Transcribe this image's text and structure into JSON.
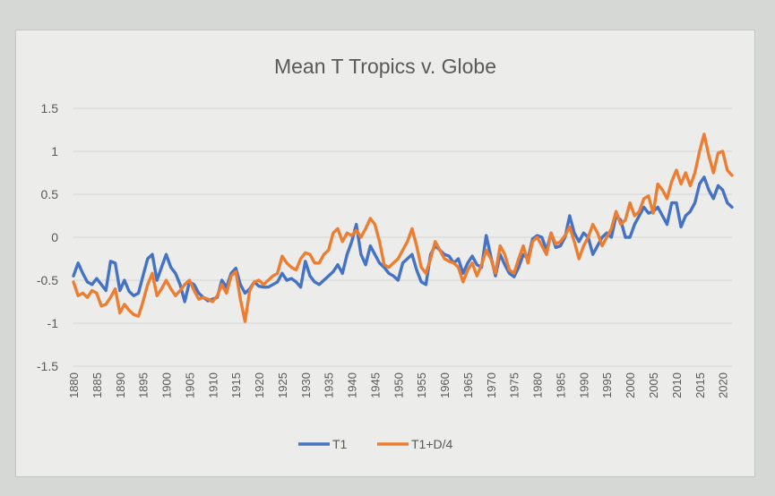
{
  "chart_data": {
    "type": "line",
    "title": "Mean T Tropics v. Globe",
    "xlabel": "",
    "ylabel": "",
    "ylim": [
      -1.5,
      1.5
    ],
    "yticks": [
      "1.5",
      "1",
      "0.5",
      "0",
      "-0.5",
      "-1",
      "-1.5"
    ],
    "ytick_values": [
      1.5,
      1,
      0.5,
      0,
      -0.5,
      -1,
      -1.5
    ],
    "xlim": [
      1880,
      2022
    ],
    "xticks": [
      "1880",
      "1885",
      "1890",
      "1895",
      "1900",
      "1905",
      "1910",
      "1915",
      "1920",
      "1925",
      "1930",
      "1935",
      "1940",
      "1945",
      "1950",
      "1955",
      "1960",
      "1965",
      "1970",
      "1975",
      "1980",
      "1985",
      "1990",
      "1995",
      "2000",
      "2005",
      "2010",
      "2015",
      "2020"
    ],
    "xtick_values": [
      1880,
      1885,
      1890,
      1895,
      1900,
      1905,
      1910,
      1915,
      1920,
      1925,
      1930,
      1935,
      1940,
      1945,
      1950,
      1955,
      1960,
      1965,
      1970,
      1975,
      1980,
      1985,
      1990,
      1995,
      2000,
      2005,
      2010,
      2015,
      2020
    ],
    "grid": true,
    "legend_position": "bottom",
    "series": [
      {
        "name": "T1",
        "color": "#4472c4",
        "x": [
          1880,
          1881,
          1882,
          1883,
          1884,
          1885,
          1886,
          1887,
          1888,
          1889,
          1890,
          1891,
          1892,
          1893,
          1894,
          1895,
          1896,
          1897,
          1898,
          1899,
          1900,
          1901,
          1902,
          1903,
          1904,
          1905,
          1906,
          1907,
          1908,
          1909,
          1910,
          1911,
          1912,
          1913,
          1914,
          1915,
          1916,
          1917,
          1918,
          1919,
          1920,
          1921,
          1922,
          1923,
          1924,
          1925,
          1926,
          1927,
          1928,
          1929,
          1930,
          1931,
          1932,
          1933,
          1934,
          1935,
          1936,
          1937,
          1938,
          1939,
          1940,
          1941,
          1942,
          1943,
          1944,
          1945,
          1946,
          1947,
          1948,
          1949,
          1950,
          1951,
          1952,
          1953,
          1954,
          1955,
          1956,
          1957,
          1958,
          1959,
          1960,
          1961,
          1962,
          1963,
          1964,
          1965,
          1966,
          1967,
          1968,
          1969,
          1970,
          1971,
          1972,
          1973,
          1974,
          1975,
          1976,
          1977,
          1978,
          1979,
          1980,
          1981,
          1982,
          1983,
          1984,
          1985,
          1986,
          1987,
          1988,
          1989,
          1990,
          1991,
          1992,
          1993,
          1994,
          1995,
          1996,
          1997,
          1998,
          1999,
          2000,
          2001,
          2002,
          2003,
          2004,
          2005,
          2006,
          2007,
          2008,
          2009,
          2010,
          2011,
          2012,
          2013,
          2014,
          2015,
          2016,
          2017,
          2018,
          2019,
          2020,
          2021,
          2022
        ],
        "y": [
          -0.45,
          -0.3,
          -0.42,
          -0.52,
          -0.55,
          -0.48,
          -0.55,
          -0.62,
          -0.28,
          -0.3,
          -0.62,
          -0.5,
          -0.63,
          -0.68,
          -0.65,
          -0.45,
          -0.25,
          -0.2,
          -0.5,
          -0.35,
          -0.2,
          -0.35,
          -0.42,
          -0.55,
          -0.75,
          -0.52,
          -0.55,
          -0.65,
          -0.7,
          -0.74,
          -0.72,
          -0.7,
          -0.5,
          -0.58,
          -0.42,
          -0.36,
          -0.55,
          -0.65,
          -0.6,
          -0.52,
          -0.57,
          -0.58,
          -0.58,
          -0.55,
          -0.52,
          -0.42,
          -0.5,
          -0.48,
          -0.52,
          -0.58,
          -0.28,
          -0.45,
          -0.52,
          -0.55,
          -0.5,
          -0.45,
          -0.4,
          -0.32,
          -0.42,
          -0.2,
          -0.05,
          0.15,
          -0.2,
          -0.32,
          -0.1,
          -0.2,
          -0.3,
          -0.35,
          -0.42,
          -0.45,
          -0.5,
          -0.3,
          -0.25,
          -0.2,
          -0.38,
          -0.52,
          -0.55,
          -0.2,
          -0.1,
          -0.15,
          -0.2,
          -0.22,
          -0.3,
          -0.25,
          -0.42,
          -0.3,
          -0.22,
          -0.32,
          -0.35,
          0.02,
          -0.22,
          -0.45,
          -0.2,
          -0.32,
          -0.42,
          -0.46,
          -0.35,
          -0.2,
          -0.25,
          -0.02,
          0.02,
          0.0,
          -0.15,
          0.05,
          -0.12,
          -0.1,
          0.0,
          0.25,
          0.05,
          -0.05,
          0.05,
          0.0,
          -0.2,
          -0.1,
          0.0,
          0.05,
          0.0,
          0.25,
          0.2,
          0.0,
          0.0,
          0.15,
          0.25,
          0.35,
          0.28,
          0.3,
          0.35,
          0.25,
          0.15,
          0.4,
          0.4,
          0.12,
          0.25,
          0.3,
          0.4,
          0.62,
          0.7,
          0.55,
          0.45,
          0.6,
          0.55,
          0.4,
          0.35
        ]
      },
      {
        "name": "T1+D/4",
        "color": "#ed7d31",
        "x": [
          1880,
          1881,
          1882,
          1883,
          1884,
          1885,
          1886,
          1887,
          1888,
          1889,
          1890,
          1891,
          1892,
          1893,
          1894,
          1895,
          1896,
          1897,
          1898,
          1899,
          1900,
          1901,
          1902,
          1903,
          1904,
          1905,
          1906,
          1907,
          1908,
          1909,
          1910,
          1911,
          1912,
          1913,
          1914,
          1915,
          1916,
          1917,
          1918,
          1919,
          1920,
          1921,
          1922,
          1923,
          1924,
          1925,
          1926,
          1927,
          1928,
          1929,
          1930,
          1931,
          1932,
          1933,
          1934,
          1935,
          1936,
          1937,
          1938,
          1939,
          1940,
          1941,
          1942,
          1943,
          1944,
          1945,
          1946,
          1947,
          1948,
          1949,
          1950,
          1951,
          1952,
          1953,
          1954,
          1955,
          1956,
          1957,
          1958,
          1959,
          1960,
          1961,
          1962,
          1963,
          1964,
          1965,
          1966,
          1967,
          1968,
          1969,
          1970,
          1971,
          1972,
          1973,
          1974,
          1975,
          1976,
          1977,
          1978,
          1979,
          1980,
          1981,
          1982,
          1983,
          1984,
          1985,
          1986,
          1987,
          1988,
          1989,
          1990,
          1991,
          1992,
          1993,
          1994,
          1995,
          1996,
          1997,
          1998,
          1999,
          2000,
          2001,
          2002,
          2003,
          2004,
          2005,
          2006,
          2007,
          2008,
          2009,
          2010,
          2011,
          2012,
          2013,
          2014,
          2015,
          2016,
          2017,
          2018,
          2019,
          2020,
          2021,
          2022
        ],
        "y": [
          -0.52,
          -0.68,
          -0.65,
          -0.7,
          -0.62,
          -0.65,
          -0.8,
          -0.78,
          -0.7,
          -0.6,
          -0.88,
          -0.78,
          -0.85,
          -0.9,
          -0.92,
          -0.75,
          -0.55,
          -0.42,
          -0.68,
          -0.6,
          -0.5,
          -0.6,
          -0.68,
          -0.62,
          -0.55,
          -0.5,
          -0.62,
          -0.72,
          -0.7,
          -0.72,
          -0.75,
          -0.68,
          -0.55,
          -0.65,
          -0.45,
          -0.4,
          -0.72,
          -0.98,
          -0.62,
          -0.52,
          -0.5,
          -0.55,
          -0.5,
          -0.45,
          -0.42,
          -0.22,
          -0.3,
          -0.35,
          -0.38,
          -0.25,
          -0.18,
          -0.2,
          -0.3,
          -0.3,
          -0.2,
          -0.15,
          0.05,
          0.1,
          -0.05,
          0.05,
          0.02,
          0.08,
          0.0,
          0.1,
          0.22,
          0.15,
          -0.05,
          -0.32,
          -0.35,
          -0.3,
          -0.25,
          -0.15,
          -0.05,
          0.1,
          -0.1,
          -0.35,
          -0.42,
          -0.25,
          -0.05,
          -0.15,
          -0.25,
          -0.28,
          -0.3,
          -0.35,
          -0.52,
          -0.38,
          -0.3,
          -0.45,
          -0.32,
          -0.15,
          -0.25,
          -0.42,
          -0.1,
          -0.2,
          -0.38,
          -0.42,
          -0.25,
          -0.1,
          -0.3,
          -0.05,
          0.0,
          -0.1,
          -0.2,
          0.05,
          -0.08,
          -0.05,
          0.02,
          0.12,
          -0.05,
          -0.25,
          -0.1,
          0.0,
          0.15,
          0.05,
          -0.1,
          0.0,
          0.1,
          0.3,
          0.15,
          0.2,
          0.4,
          0.25,
          0.3,
          0.45,
          0.48,
          0.28,
          0.62,
          0.55,
          0.45,
          0.65,
          0.78,
          0.62,
          0.75,
          0.6,
          0.75,
          1.0,
          1.2,
          0.95,
          0.75,
          0.98,
          1.0,
          0.78,
          0.72
        ]
      }
    ]
  }
}
